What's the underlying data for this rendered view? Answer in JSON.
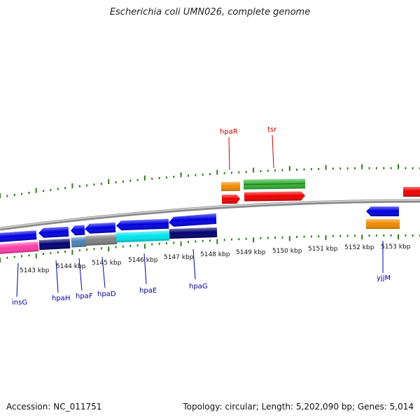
{
  "title": "Escherichia coli UMN026, complete genome",
  "footer": {
    "accession": "Accession: NC_011751",
    "summary": "Topology: circular; Length: 5,202,090 bp; Genes: 5,014"
  },
  "colors": {
    "background": "#ffffff",
    "backbone": "#8a8a8a",
    "tick": "#2e7d1a",
    "label_forward": "#cc0000",
    "label_reverse": "#00009a",
    "blue_gene": "#0000e0",
    "red_gene": "#ee0000",
    "orange_feature": "#f08c00",
    "green_feature": "#33b033",
    "pink_feature": "#ff3ca8",
    "navy_feature": "#000070",
    "steel_feature": "#4682b4",
    "gray_feature": "#808080",
    "cyan_feature": "#00e5ee"
  },
  "axis": {
    "unit": "kbp",
    "labels": [
      "5143 kbp",
      "5144 kbp",
      "5145 kbp",
      "5146 kbp",
      "5147 kbp",
      "5148 kbp",
      "5149 kbp",
      "5150 kbp",
      "5151 kbp",
      "5152 kbp",
      "5153 kbp"
    ]
  },
  "gene_labels": {
    "forward": [
      "hpaR",
      "tsr"
    ],
    "reverse": [
      "insG",
      "hpaH",
      "hpaF",
      "hpaD",
      "hpaE",
      "hpaG",
      "yjjM"
    ]
  },
  "chart_data": {
    "type": "genome_map",
    "title": "Escherichia coli UMN026, complete genome",
    "genome": {
      "accession": "NC_011751",
      "topology": "circular",
      "length_bp": 5202090,
      "genes": 5014
    },
    "visible_range_kbp": [
      5142,
      5154
    ],
    "genes": [
      {
        "name": "insG",
        "strand": "-",
        "start_kbp": 5142.0,
        "end_kbp": 5143.0
      },
      {
        "name": "hpaH",
        "strand": "-",
        "start_kbp": 5143.0,
        "end_kbp": 5143.85
      },
      {
        "name": "hpaF",
        "strand": "-",
        "start_kbp": 5143.95,
        "end_kbp": 5144.35
      },
      {
        "name": "hpaD",
        "strand": "-",
        "start_kbp": 5144.4,
        "end_kbp": 5145.25
      },
      {
        "name": "hpaE",
        "strand": "-",
        "start_kbp": 5145.3,
        "end_kbp": 5146.75
      },
      {
        "name": "hpaG",
        "strand": "-",
        "start_kbp": 5146.8,
        "end_kbp": 5148.1
      },
      {
        "name": "hpaR",
        "strand": "+",
        "start_kbp": 5148.1,
        "end_kbp": 5148.6
      },
      {
        "name": "tsr",
        "strand": "+",
        "start_kbp": 5148.7,
        "end_kbp": 5150.4
      },
      {
        "name": "yjjM",
        "strand": "-",
        "start_kbp": 5152.3,
        "end_kbp": 5153.2
      }
    ]
  }
}
